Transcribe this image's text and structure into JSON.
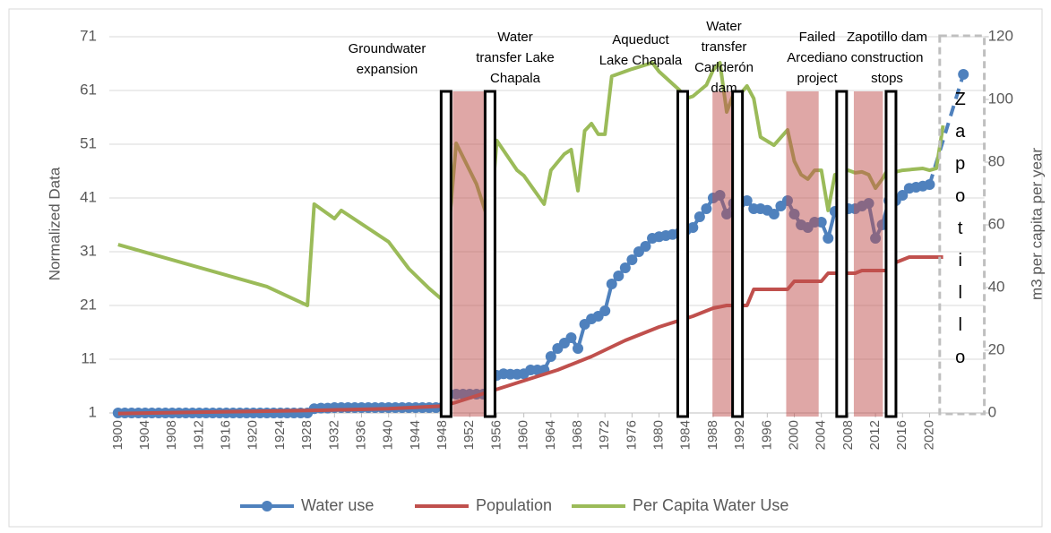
{
  "chart_data": {
    "type": "line",
    "y_label": "Normalized Data",
    "y2_label": "m3 per capita per year",
    "xlim": [
      1898.7,
      2028.1
    ],
    "xticks": [
      1900,
      1904,
      1908,
      1912,
      1916,
      1920,
      1924,
      1928,
      1932,
      1936,
      1940,
      1944,
      1948,
      1952,
      1956,
      1960,
      1964,
      1968,
      1972,
      1976,
      1980,
      1984,
      1988,
      1992,
      1996,
      2000,
      2004,
      2008,
      2012,
      2016,
      2020
    ],
    "ylim": [
      1,
      71
    ],
    "yticks": [
      1,
      11,
      21,
      31,
      41,
      51,
      61,
      71
    ],
    "y2lim": [
      0,
      120
    ],
    "y2ticks": [
      0,
      20,
      40,
      60,
      80,
      100,
      120
    ],
    "grid": true,
    "legend": "bottom",
    "series": [
      {
        "name": "Water use",
        "color": "#4f81bd",
        "markers": true,
        "dashed_after": 2020,
        "x": [
          1900,
          1901,
          1902,
          1903,
          1904,
          1905,
          1906,
          1907,
          1908,
          1909,
          1910,
          1911,
          1912,
          1913,
          1914,
          1915,
          1916,
          1917,
          1918,
          1919,
          1920,
          1921,
          1922,
          1923,
          1924,
          1925,
          1926,
          1927,
          1928,
          1929,
          1930,
          1931,
          1932,
          1933,
          1934,
          1935,
          1936,
          1937,
          1938,
          1939,
          1940,
          1941,
          1942,
          1943,
          1944,
          1945,
          1946,
          1947,
          1948,
          1949,
          1950,
          1951,
          1952,
          1953,
          1954,
          1955,
          1956,
          1957,
          1958,
          1959,
          1960,
          1961,
          1962,
          1963,
          1964,
          1965,
          1966,
          1967,
          1968,
          1969,
          1970,
          1971,
          1972,
          1973,
          1974,
          1975,
          1976,
          1977,
          1978,
          1979,
          1980,
          1981,
          1982,
          1983,
          1984,
          1985,
          1986,
          1987,
          1988,
          1989,
          1990,
          1991,
          1992,
          1993,
          1994,
          1995,
          1996,
          1997,
          1998,
          1999,
          2000,
          2001,
          2002,
          2003,
          2004,
          2005,
          2006,
          2007,
          2008,
          2009,
          2010,
          2011,
          2012,
          2013,
          2014,
          2015,
          2016,
          2017,
          2018,
          2019,
          2020,
          2025
        ],
        "values": [
          1,
          1,
          1,
          1,
          1,
          1,
          1,
          1,
          1,
          1,
          1,
          1,
          1,
          1,
          1,
          1,
          1,
          1,
          1,
          1,
          1,
          1,
          1,
          1,
          1,
          1,
          1,
          1,
          1,
          1.8,
          1.9,
          1.9,
          2,
          2,
          2,
          2,
          2,
          2,
          2,
          2,
          2,
          2,
          2,
          2,
          2,
          2,
          2,
          2,
          2.1,
          4.5,
          4.5,
          4.5,
          4.5,
          4.5,
          4.5,
          4.5,
          8,
          8.3,
          8.2,
          8.2,
          8.3,
          9,
          9,
          9,
          11.5,
          13,
          14,
          15,
          13,
          17.5,
          18.5,
          19,
          20,
          25,
          26.5,
          28,
          29.5,
          31,
          32,
          33.5,
          33.8,
          34,
          34.2,
          34.5,
          35,
          35.5,
          37.5,
          39,
          41,
          41.5,
          38,
          40,
          40,
          40.5,
          39,
          39,
          38.7,
          38,
          39.5,
          40.5,
          38,
          36,
          35.5,
          36.5,
          36.5,
          33.5,
          38.5,
          38.5,
          39,
          39,
          39.5,
          40,
          33.5,
          36,
          40.5,
          40.5,
          41.5,
          42.8,
          43,
          43.2,
          43.5,
          64
        ]
      },
      {
        "name": "Population",
        "color": "#c0504d",
        "x": [
          1900,
          1910,
          1920,
          1930,
          1940,
          1948,
          1950,
          1955,
          1960,
          1965,
          1970,
          1975,
          1980,
          1985,
          1988,
          1990,
          1993,
          1994,
          1999,
          2000,
          2004,
          2005,
          2009,
          2010,
          2014,
          2015,
          2017,
          2022
        ],
        "values": [
          0.9,
          1.1,
          1.3,
          1.5,
          1.8,
          2.3,
          3,
          5,
          7,
          9,
          11.5,
          14.5,
          17,
          19,
          20.5,
          21,
          21,
          24,
          24,
          25.5,
          25.5,
          27,
          27,
          27.5,
          27.5,
          29,
          30,
          30
        ]
      },
      {
        "name": "Per Capita Water Use",
        "color": "#9bbb59",
        "axis": "y2",
        "x": [
          1900,
          1922,
          1928,
          1929,
          1932,
          1933,
          1940,
          1943,
          1946,
          1948,
          1950,
          1953,
          1955,
          1956,
          1959,
          1960,
          1963,
          1964,
          1966,
          1967,
          1968,
          1969,
          1970,
          1971,
          1972,
          1973,
          1976,
          1979,
          1980,
          1983,
          1984,
          1985,
          1987,
          1988,
          1989,
          1990,
          1991,
          1992,
          1993,
          1994,
          1995,
          1997,
          1999,
          2000,
          2001,
          2002,
          2003,
          2004,
          2005,
          2006,
          2007,
          2008,
          2009,
          2010,
          2011,
          2012,
          2013,
          2014,
          2015,
          2016,
          2019,
          2020,
          2021,
          2022
        ],
        "values": [
          53.7,
          40.3,
          34.3,
          66.6,
          62,
          64.6,
          54.6,
          46,
          39.7,
          36,
          86,
          73,
          59.7,
          86.9,
          77.4,
          75.7,
          66.6,
          77.4,
          82.6,
          84,
          70.9,
          90,
          92.3,
          88.9,
          88.9,
          107.4,
          109.7,
          111.7,
          108.9,
          103,
          100.3,
          101,
          104.6,
          109.4,
          111.7,
          96,
          101.7,
          101.7,
          104.3,
          100.3,
          88,
          85.4,
          90.3,
          80.3,
          76,
          74.6,
          77.4,
          77.4,
          64.6,
          76,
          76.6,
          77.4,
          76.6,
          76.9,
          76,
          71.7,
          74.6,
          78.3,
          76.9,
          77.4,
          78,
          77.4,
          78,
          91.7
        ]
      }
    ],
    "shaded_periods": [
      [
        1949.5,
        1954.8
      ],
      [
        1987.9,
        1991.2
      ],
      [
        1998.8,
        2003.6
      ],
      [
        2008.8,
        2013.1
      ]
    ],
    "event_markers": [
      1948.5,
      1955,
      1983.5,
      1991.6,
      2007,
      2014.3
    ],
    "annotations": [
      {
        "label": [
          "Groundwater",
          "expansion"
        ]
      },
      {
        "label": [
          "Water",
          "transfer Lake",
          "Chapala"
        ]
      },
      {
        "label": [
          "Aqueduct",
          "Lake Chapala"
        ]
      },
      {
        "label": [
          "Water",
          "transfer",
          "Carlderón",
          "dam"
        ]
      },
      {
        "label": [
          "Failed",
          "Arcediano",
          "project"
        ]
      },
      {
        "label": [
          "Zapotillo dam",
          "construction",
          "stops"
        ]
      }
    ],
    "projection": {
      "label": "Zapotillo",
      "period": [
        2021.5,
        2028.1
      ]
    }
  }
}
